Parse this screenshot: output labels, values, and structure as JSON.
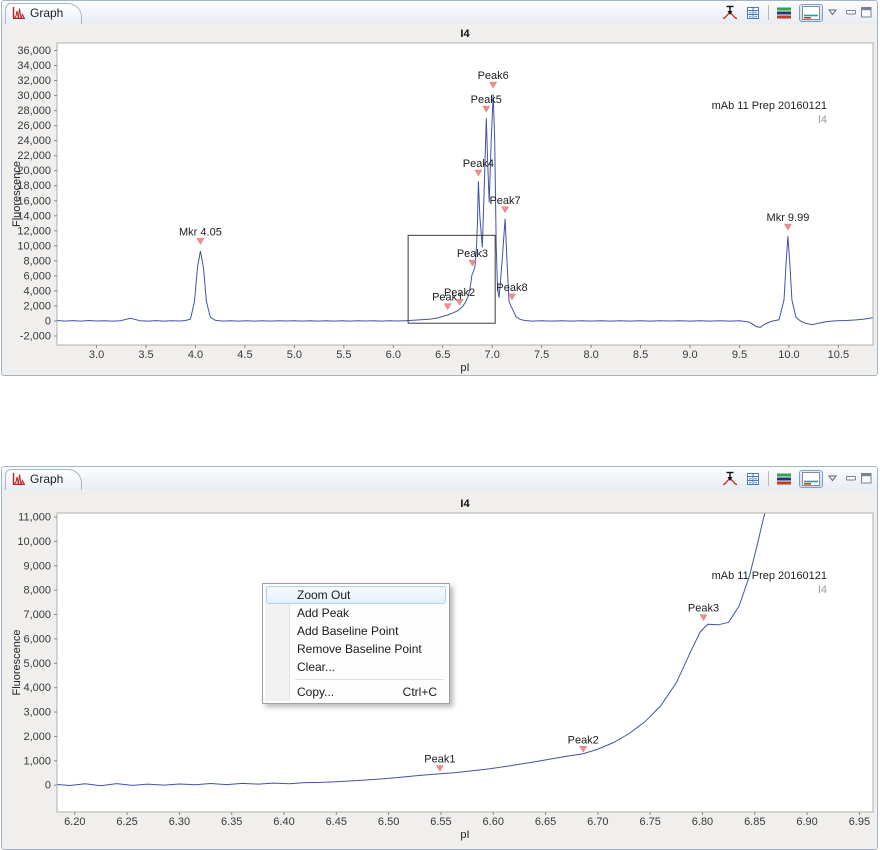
{
  "panels": [
    {
      "tab_label": "Graph"
    },
    {
      "tab_label": "Graph"
    }
  ],
  "toolbar_icons": [
    "place-peak-marker",
    "data-table",
    "overlay-graphs",
    "single-graph",
    "view-menu",
    "minimize",
    "maximize"
  ],
  "tab_icon": "graph-chart",
  "context_menu": {
    "items": [
      {
        "label": "Zoom Out",
        "highlighted": true
      },
      {
        "label": "Add Peak"
      },
      {
        "label": "Add Baseline Point"
      },
      {
        "label": "Remove Baseline Point"
      },
      {
        "label": "Clear..."
      },
      {
        "label": "Copy...",
        "shortcut": "Ctrl+C",
        "separator_before": true
      }
    ]
  },
  "colors": {
    "curve": "#4053a8",
    "peak_marker": "#ef8e8e",
    "panel_border": "#a2b5ca",
    "annotation_secondary": "#999999",
    "menu_highlight_border": "#aed1ef"
  },
  "chart_data": [
    {
      "type": "line",
      "title": "I4",
      "xlabel": "pI",
      "ylabel": "Fluorescence",
      "annotation": "mAb 11 Prep 20160121",
      "annotation_sub": "I4",
      "legend_position": "none",
      "grid": false,
      "xlim": [
        2.6,
        10.85
      ],
      "ylim": [
        -3200,
        37000
      ],
      "xticks": [
        [
          3.0,
          "3.0"
        ],
        [
          3.5,
          "3.5"
        ],
        [
          4.0,
          "4.0"
        ],
        [
          4.5,
          "4.5"
        ],
        [
          5.0,
          "5.0"
        ],
        [
          5.5,
          "5.5"
        ],
        [
          6.0,
          "6.0"
        ],
        [
          6.5,
          "6.5"
        ],
        [
          7.0,
          "7.0"
        ],
        [
          7.5,
          "7.5"
        ],
        [
          8.0,
          "8.0"
        ],
        [
          8.5,
          "8.5"
        ],
        [
          9.0,
          "9.0"
        ],
        [
          9.5,
          "9.5"
        ],
        [
          10.0,
          "10.0"
        ],
        [
          10.5,
          "10.5"
        ]
      ],
      "yticks": [
        [
          -2000,
          "-2,000"
        ],
        [
          0,
          "0"
        ],
        [
          2000,
          "2,000"
        ],
        [
          4000,
          "4,000"
        ],
        [
          6000,
          "6,000"
        ],
        [
          8000,
          "8,000"
        ],
        [
          10000,
          "10,000"
        ],
        [
          12000,
          "12,000"
        ],
        [
          14000,
          "14,000"
        ],
        [
          16000,
          "16,000"
        ],
        [
          18000,
          "18,000"
        ],
        [
          20000,
          "20,000"
        ],
        [
          22000,
          "22,000"
        ],
        [
          24000,
          "24,000"
        ],
        [
          26000,
          "26,000"
        ],
        [
          28000,
          "28,000"
        ],
        [
          30000,
          "30,000"
        ],
        [
          32000,
          "32,000"
        ],
        [
          34000,
          "34,000"
        ],
        [
          36000,
          "36,000"
        ]
      ],
      "peaks": [
        {
          "label": "Mkr 4.05",
          "x": 4.05,
          "y": 10200
        },
        {
          "label": "Peak1",
          "x": 6.55,
          "y": 1500
        },
        {
          "label": "Peak2",
          "x": 6.67,
          "y": 2100
        },
        {
          "label": "Peak3",
          "x": 6.8,
          "y": 7300
        },
        {
          "label": "Peak4",
          "x": 6.86,
          "y": 19300
        },
        {
          "label": "Peak5",
          "x": 6.94,
          "y": 27800
        },
        {
          "label": "Peak6",
          "x": 7.01,
          "y": 31000
        },
        {
          "label": "Peak7",
          "x": 7.13,
          "y": 14400
        },
        {
          "label": "Peak8",
          "x": 7.2,
          "y": 2800
        },
        {
          "label": "Mkr 9.99",
          "x": 9.99,
          "y": 12100
        }
      ],
      "selection_box": {
        "x0": 6.15,
        "x1": 7.03,
        "y0": -300,
        "y1": 11400
      },
      "points": [
        [
          2.6,
          60
        ],
        [
          2.68,
          -25
        ],
        [
          2.76,
          45
        ],
        [
          2.84,
          -20
        ],
        [
          2.92,
          55
        ],
        [
          3.0,
          -10
        ],
        [
          3.08,
          35
        ],
        [
          3.16,
          -15
        ],
        [
          3.24,
          40
        ],
        [
          3.3,
          220
        ],
        [
          3.34,
          360
        ],
        [
          3.38,
          240
        ],
        [
          3.44,
          30
        ],
        [
          3.52,
          -20
        ],
        [
          3.6,
          45
        ],
        [
          3.68,
          -25
        ],
        [
          3.76,
          30
        ],
        [
          3.84,
          -10
        ],
        [
          3.9,
          60
        ],
        [
          3.95,
          250
        ],
        [
          3.99,
          2600
        ],
        [
          4.02,
          7200
        ],
        [
          4.05,
          9300
        ],
        [
          4.08,
          7200
        ],
        [
          4.11,
          2600
        ],
        [
          4.15,
          500
        ],
        [
          4.2,
          90
        ],
        [
          4.28,
          -20
        ],
        [
          4.36,
          35
        ],
        [
          4.44,
          -25
        ],
        [
          4.52,
          30
        ],
        [
          4.6,
          -15
        ],
        [
          4.68,
          40
        ],
        [
          4.76,
          -20
        ],
        [
          4.84,
          30
        ],
        [
          4.92,
          -10
        ],
        [
          5.0,
          35
        ],
        [
          5.08,
          -20
        ],
        [
          5.16,
          30
        ],
        [
          5.24,
          -25
        ],
        [
          5.32,
          40
        ],
        [
          5.4,
          -15
        ],
        [
          5.48,
          30
        ],
        [
          5.56,
          -20
        ],
        [
          5.64,
          35
        ],
        [
          5.72,
          -10
        ],
        [
          5.8,
          30
        ],
        [
          5.88,
          -20
        ],
        [
          5.96,
          40
        ],
        [
          6.04,
          0
        ],
        [
          6.12,
          40
        ],
        [
          6.2,
          90
        ],
        [
          6.28,
          150
        ],
        [
          6.36,
          240
        ],
        [
          6.44,
          380
        ],
        [
          6.5,
          600
        ],
        [
          6.55,
          800
        ],
        [
          6.6,
          1050
        ],
        [
          6.65,
          1350
        ],
        [
          6.7,
          1900
        ],
        [
          6.73,
          2500
        ],
        [
          6.76,
          3400
        ],
        [
          6.78,
          4600
        ],
        [
          6.795,
          6100
        ],
        [
          6.81,
          6600
        ],
        [
          6.825,
          7200
        ],
        [
          6.84,
          9500
        ],
        [
          6.85,
          13000
        ],
        [
          6.86,
          18600
        ],
        [
          6.875,
          14000
        ],
        [
          6.9,
          9800
        ],
        [
          6.92,
          18000
        ],
        [
          6.94,
          27000
        ],
        [
          6.955,
          21000
        ],
        [
          6.97,
          15800
        ],
        [
          6.99,
          24000
        ],
        [
          7.01,
          30200
        ],
        [
          7.025,
          24000
        ],
        [
          7.04,
          10000
        ],
        [
          7.055,
          4200
        ],
        [
          7.07,
          3100
        ],
        [
          7.1,
          8000
        ],
        [
          7.13,
          13600
        ],
        [
          7.15,
          8000
        ],
        [
          7.17,
          2600
        ],
        [
          7.19,
          1950
        ],
        [
          7.21,
          1450
        ],
        [
          7.24,
          600
        ],
        [
          7.28,
          220
        ],
        [
          7.33,
          60
        ],
        [
          7.4,
          -20
        ],
        [
          7.5,
          30
        ],
        [
          7.6,
          -25
        ],
        [
          7.7,
          35
        ],
        [
          7.8,
          -15
        ],
        [
          7.9,
          30
        ],
        [
          8.0,
          -20
        ],
        [
          8.1,
          40
        ],
        [
          8.2,
          -20
        ],
        [
          8.3,
          30
        ],
        [
          8.4,
          -15
        ],
        [
          8.5,
          35
        ],
        [
          8.6,
          -25
        ],
        [
          8.7,
          30
        ],
        [
          8.8,
          -10
        ],
        [
          8.9,
          35
        ],
        [
          9.0,
          -20
        ],
        [
          9.1,
          30
        ],
        [
          9.2,
          -15
        ],
        [
          9.3,
          35
        ],
        [
          9.4,
          -20
        ],
        [
          9.5,
          20
        ],
        [
          9.6,
          -150
        ],
        [
          9.67,
          -750
        ],
        [
          9.71,
          -850
        ],
        [
          9.76,
          -400
        ],
        [
          9.82,
          -60
        ],
        [
          9.9,
          150
        ],
        [
          9.95,
          2800
        ],
        [
          9.97,
          7500
        ],
        [
          9.99,
          11300
        ],
        [
          10.01,
          7500
        ],
        [
          10.03,
          2800
        ],
        [
          10.07,
          500
        ],
        [
          10.12,
          -50
        ],
        [
          10.18,
          -350
        ],
        [
          10.24,
          -480
        ],
        [
          10.3,
          -300
        ],
        [
          10.38,
          -80
        ],
        [
          10.48,
          20
        ],
        [
          10.58,
          60
        ],
        [
          10.68,
          140
        ],
        [
          10.76,
          250
        ],
        [
          10.85,
          430
        ]
      ]
    },
    {
      "type": "line",
      "title": "I4",
      "xlabel": "pI",
      "ylabel": "Fluorescence",
      "annotation": "mAb 11 Prep 20160121",
      "annotation_sub": "I4",
      "legend_position": "none",
      "grid": false,
      "xlim": [
        6.183,
        6.963
      ],
      "ylim": [
        -1100,
        11164
      ],
      "xticks": [
        [
          6.2,
          "6.20"
        ],
        [
          6.25,
          "6.25"
        ],
        [
          6.3,
          "6.30"
        ],
        [
          6.35,
          "6.35"
        ],
        [
          6.4,
          "6.40"
        ],
        [
          6.45,
          "6.45"
        ],
        [
          6.5,
          "6.50"
        ],
        [
          6.55,
          "6.55"
        ],
        [
          6.6,
          "6.60"
        ],
        [
          6.65,
          "6.65"
        ],
        [
          6.7,
          "6.70"
        ],
        [
          6.75,
          "6.75"
        ],
        [
          6.8,
          "6.80"
        ],
        [
          6.85,
          "6.85"
        ],
        [
          6.9,
          "6.90"
        ],
        [
          6.95,
          "6.95"
        ]
      ],
      "yticks": [
        [
          0,
          "0"
        ],
        [
          1000,
          "1,000"
        ],
        [
          2000,
          "2,000"
        ],
        [
          3000,
          "3,000"
        ],
        [
          4000,
          "4,000"
        ],
        [
          5000,
          "5,000"
        ],
        [
          6000,
          "6,000"
        ],
        [
          7000,
          "7,000"
        ],
        [
          8000,
          "8,000"
        ],
        [
          9000,
          "9,000"
        ],
        [
          10000,
          "10,000"
        ],
        [
          11000,
          "11,000"
        ]
      ],
      "peaks": [
        {
          "label": "Peak1",
          "x": 6.549,
          "y": 560
        },
        {
          "label": "Peak2",
          "x": 6.686,
          "y": 1350
        },
        {
          "label": "Peak3",
          "x": 6.801,
          "y": 6750
        }
      ],
      "points": [
        [
          6.183,
          30
        ],
        [
          6.195,
          -15
        ],
        [
          6.21,
          55
        ],
        [
          6.225,
          -20
        ],
        [
          6.24,
          65
        ],
        [
          6.255,
          -10
        ],
        [
          6.27,
          45
        ],
        [
          6.285,
          5
        ],
        [
          6.3,
          50
        ],
        [
          6.315,
          15
        ],
        [
          6.33,
          70
        ],
        [
          6.345,
          25
        ],
        [
          6.36,
          75
        ],
        [
          6.375,
          45
        ],
        [
          6.39,
          85
        ],
        [
          6.405,
          60
        ],
        [
          6.42,
          105
        ],
        [
          6.435,
          115
        ],
        [
          6.45,
          140
        ],
        [
          6.465,
          175
        ],
        [
          6.48,
          215
        ],
        [
          6.495,
          260
        ],
        [
          6.51,
          320
        ],
        [
          6.525,
          380
        ],
        [
          6.54,
          440
        ],
        [
          6.55,
          465
        ],
        [
          6.565,
          520
        ],
        [
          6.58,
          590
        ],
        [
          6.595,
          665
        ],
        [
          6.61,
          755
        ],
        [
          6.625,
          855
        ],
        [
          6.64,
          960
        ],
        [
          6.655,
          1075
        ],
        [
          6.67,
          1190
        ],
        [
          6.686,
          1290
        ],
        [
          6.7,
          1480
        ],
        [
          6.715,
          1750
        ],
        [
          6.73,
          2120
        ],
        [
          6.745,
          2600
        ],
        [
          6.76,
          3250
        ],
        [
          6.775,
          4200
        ],
        [
          6.79,
          5600
        ],
        [
          6.798,
          6300
        ],
        [
          6.805,
          6600
        ],
        [
          6.815,
          6580
        ],
        [
          6.825,
          6680
        ],
        [
          6.835,
          7350
        ],
        [
          6.845,
          8600
        ],
        [
          6.852,
          9800
        ],
        [
          6.858,
          10900
        ],
        [
          6.863,
          11600
        ]
      ]
    }
  ]
}
